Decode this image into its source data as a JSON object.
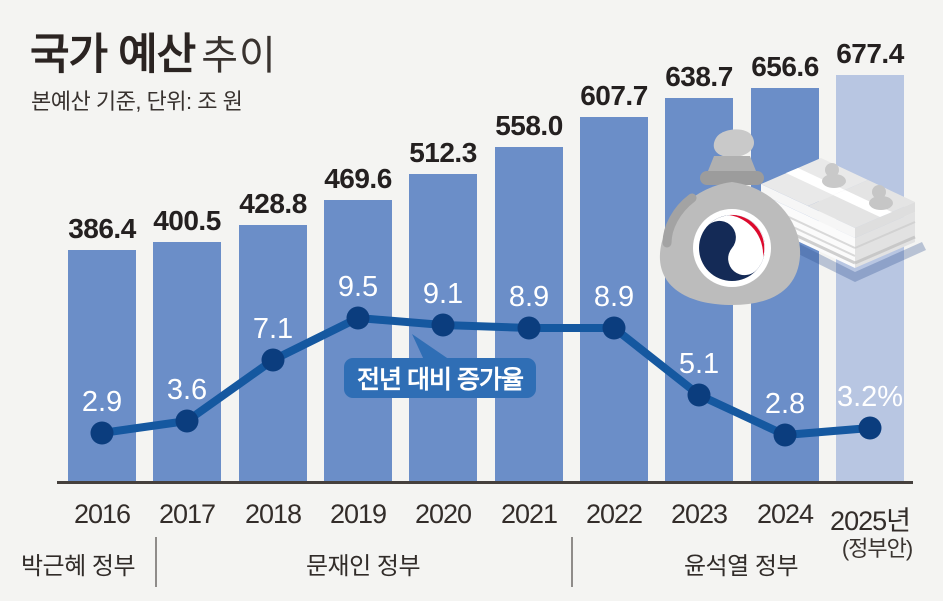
{
  "header": {
    "title_strong": "국가 예산",
    "title_light": "추이",
    "subtitle": "본예산 기준, 단위: 조 원"
  },
  "callout": {
    "label": "전년 대비 증가율"
  },
  "chart_data": {
    "type": "bar",
    "title": "국가 예산 추이",
    "subtitle": "본예산 기준, 단위: 조 원",
    "categories": [
      "2016",
      "2017",
      "2018",
      "2019",
      "2020",
      "2021",
      "2022",
      "2023",
      "2024",
      "2025년"
    ],
    "series": [
      {
        "name": "본예산 (조 원)",
        "type": "bar",
        "values": [
          386.4,
          400.5,
          428.8,
          469.6,
          512.3,
          558.0,
          607.7,
          638.7,
          656.6,
          677.4
        ],
        "value_labels": [
          "386.4",
          "400.5",
          "428.8",
          "469.6",
          "512.3",
          "558.0",
          "607.7",
          "638.7",
          "656.6",
          "677.4"
        ],
        "highlight_last_bar": true
      },
      {
        "name": "전년 대비 증가율 (%)",
        "type": "line",
        "values": [
          2.9,
          3.6,
          7.1,
          9.5,
          9.1,
          8.9,
          8.9,
          5.1,
          2.8,
          3.2
        ],
        "value_labels": [
          "2.9",
          "3.6",
          "7.1",
          "9.5",
          "9.1",
          "8.9",
          "8.9",
          "5.1",
          "2.8",
          "3.2%"
        ]
      }
    ],
    "annotation": "전년 대비 증가율",
    "grid": false,
    "legend_position": "none",
    "bar_axis_range": [
      0,
      700
    ],
    "line_axis_unit": "%"
  },
  "footer": {
    "note_2025": "(정부안)",
    "governments": [
      {
        "label": "박근혜 정부",
        "years": "2016"
      },
      {
        "label": "문재인 정부",
        "years": "2017-2021"
      },
      {
        "label": "윤석열 정부",
        "years": "2022-2025"
      }
    ]
  },
  "icons": {
    "money_bag": "money-bag-icon",
    "banknotes": "banknote-stack-icon",
    "emblem": "korea-government-emblem-icon"
  },
  "colors": {
    "background": "#f4f4f2",
    "bar": "#6b8ec8",
    "bar_light": "#b8c6e2",
    "line": "#1558a0",
    "dot": "#0b3d7e",
    "callout_bg": "#2f6eb5",
    "axis": "#45403d",
    "emblem_navy": "#142a56",
    "emblem_red": "#dc0a2d",
    "bag_gray": "#bcbcbc"
  }
}
